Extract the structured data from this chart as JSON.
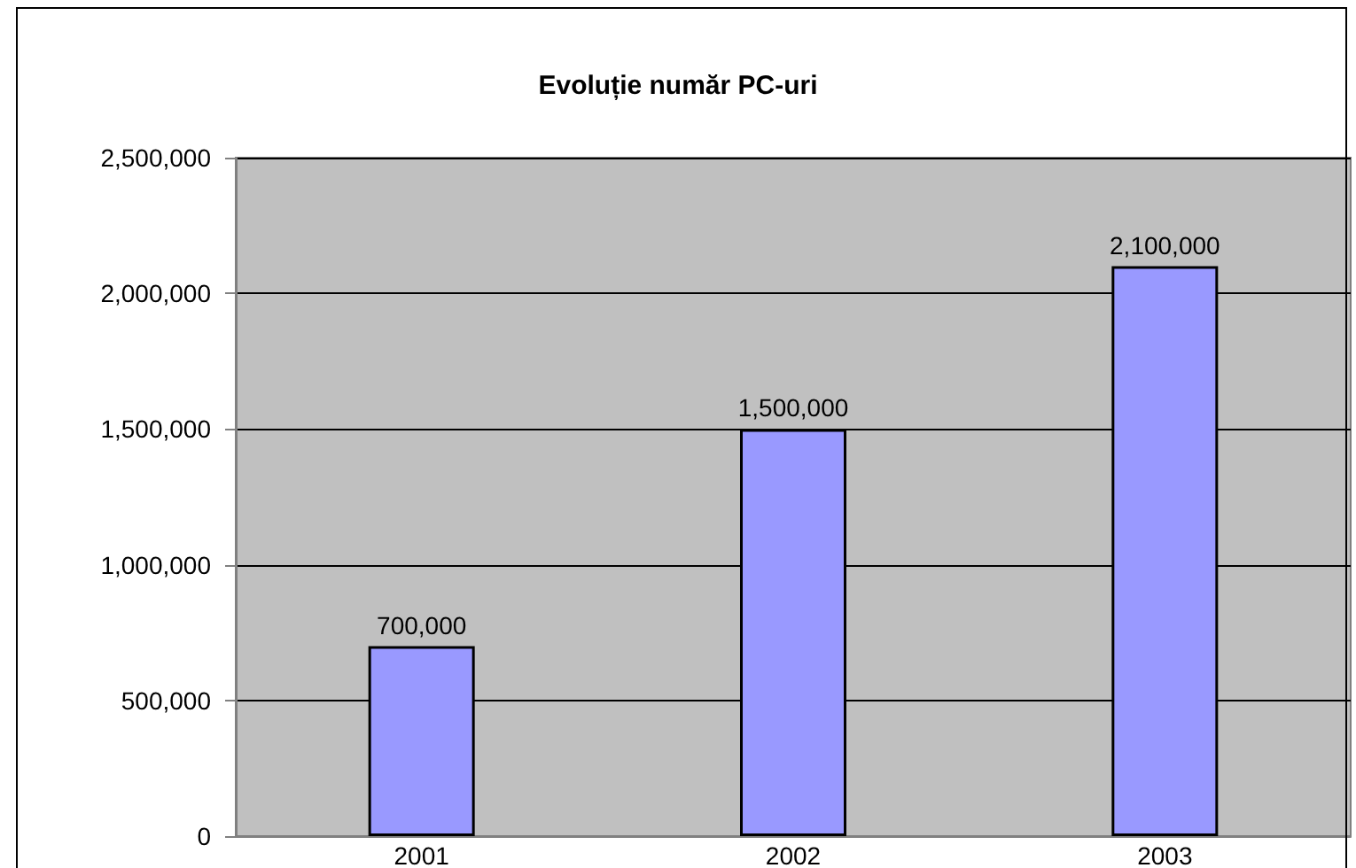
{
  "chart_data": {
    "type": "bar",
    "title": "Evoluție număr PC-uri",
    "categories": [
      "2001",
      "2002",
      "2003"
    ],
    "values": [
      700000,
      1500000,
      2100000
    ],
    "value_labels": [
      "700,000",
      "1,500,000",
      "2,100,000"
    ],
    "color": "#9999ff",
    "ylim": [
      0,
      2500000
    ],
    "yticks": [
      {
        "value": 0,
        "label": "0"
      },
      {
        "value": 500000,
        "label": "500,000"
      },
      {
        "value": 1000000,
        "label": "1,000,000"
      },
      {
        "value": 1500000,
        "label": "1,500,000"
      },
      {
        "value": 2000000,
        "label": "2,000,000"
      },
      {
        "value": 2500000,
        "label": "2,500,000"
      }
    ],
    "grid": "y"
  }
}
